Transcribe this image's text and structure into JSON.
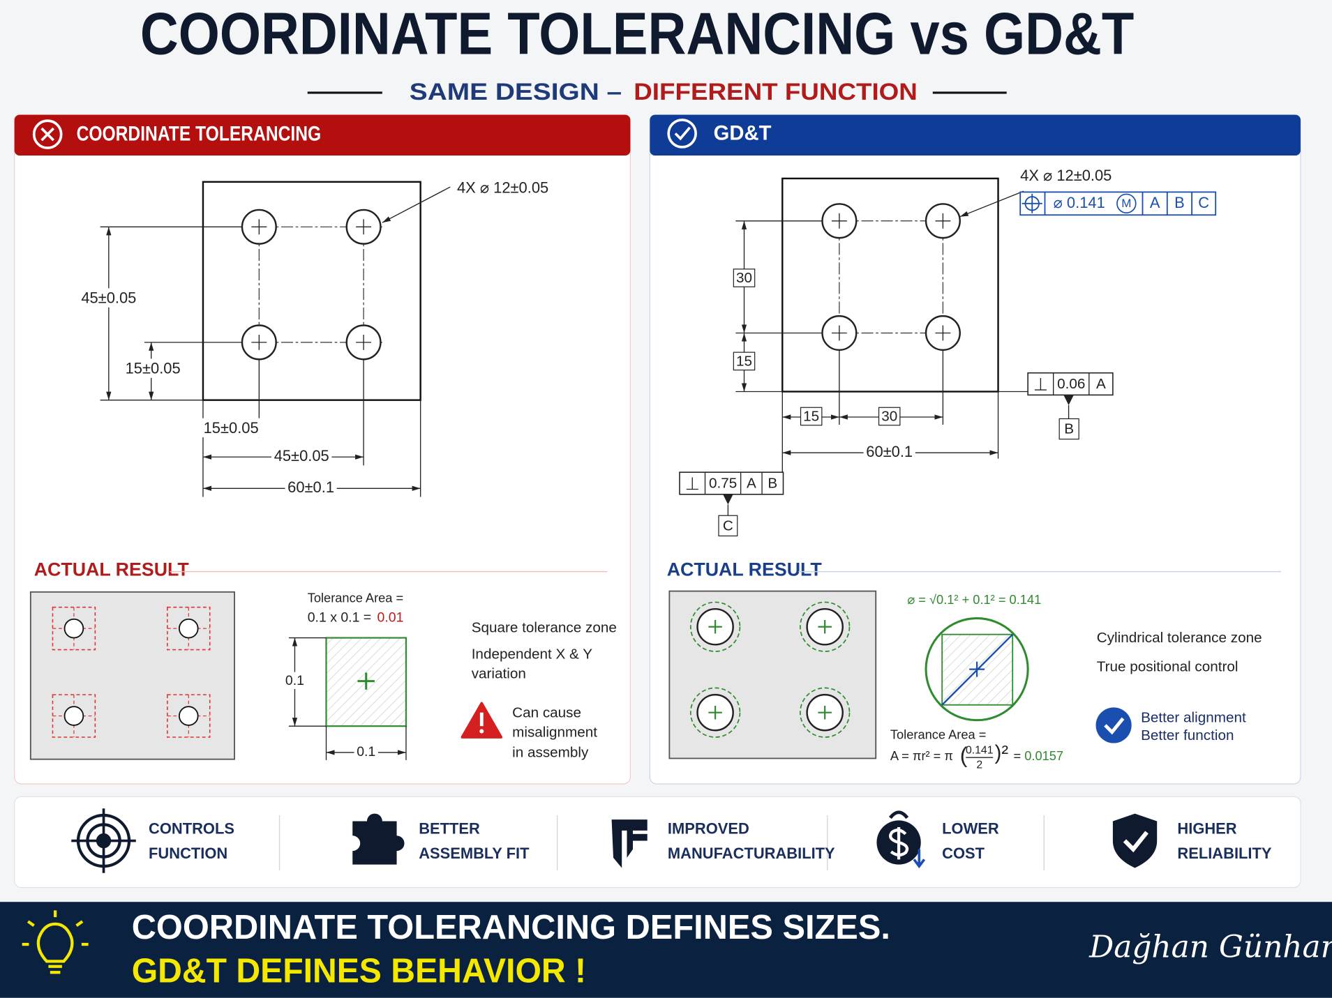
{
  "header": {
    "title": "COORDINATE TOLERANCING vs GD&T",
    "subtitle_left": "SAME DESIGN –",
    "subtitle_right": "DIFFERENT FUNCTION"
  },
  "left_panel": {
    "title": "COORDINATE TOLERANCING",
    "drawing": {
      "hole_callout": "4X ⌀ 12±0.05",
      "dim_vertical_outer": "45±0.05",
      "dim_vertical_inner": "15±0.05",
      "dim_horizontal_first": "15±0.05",
      "dim_horizontal_second": "45±0.05",
      "dim_horizontal_overall": "60±0.1"
    },
    "result": {
      "heading": "ACTUAL RESULT",
      "area_label": "Tolerance Area =",
      "area_formula": "0.1 x 0.1 =",
      "area_value": "0.01",
      "zone_height": "0.1",
      "zone_width": "0.1",
      "notes": [
        "Square tolerance zone",
        "Independent X & Y",
        "variation"
      ],
      "warning": [
        "Can cause",
        "misalignment",
        "in assembly"
      ]
    }
  },
  "right_panel": {
    "title": "GD&T",
    "drawing": {
      "hole_callout": "4X ⌀ 12±0.05",
      "position_frame": {
        "tolerance": "⌀ 0.141",
        "modifier": "M",
        "datums": [
          "A",
          "B",
          "C"
        ]
      },
      "dim_vertical_upper": "30",
      "dim_vertical_lower": "15",
      "dim_horizontal_first": "15",
      "dim_horizontal_second": "30",
      "dim_horizontal_overall": "60±0.1",
      "perpendicularity_frame_right": {
        "tolerance": "0.06",
        "datums": [
          "A"
        ]
      },
      "datum_right": "B",
      "perpendicularity_frame_left": {
        "tolerance": "0.75",
        "datums": [
          "A",
          "B"
        ]
      },
      "datum_left": "C"
    },
    "result": {
      "heading": "ACTUAL RESULT",
      "diameter_formula": "⌀ = √0.1² + 0.1² = 0.141",
      "area_label": "Tolerance Area =",
      "area_formula_start": "A = πr² = π",
      "area_open": "(",
      "area_numerator": "0.141",
      "area_denominator": "2",
      "area_close": ")²",
      "area_equals": "=",
      "area_value": "0.0157",
      "notes": [
        "Cylindrical tolerance zone",
        "True positional control"
      ],
      "benefits": [
        "Better alignment",
        "Better function"
      ]
    }
  },
  "benefits": [
    {
      "lines": [
        "CONTROLS",
        "FUNCTION"
      ]
    },
    {
      "lines": [
        "BETTER",
        "ASSEMBLY FIT"
      ]
    },
    {
      "lines": [
        "IMPROVED",
        "MANUFACTURABILITY"
      ]
    },
    {
      "lines": [
        "LOWER",
        "COST"
      ]
    },
    {
      "lines": [
        "HIGHER",
        "RELIABILITY"
      ]
    }
  ],
  "footer": {
    "line1": "COORDINATE TOLERANCING DEFINES SIZES.",
    "line2": "GD&T DEFINES BEHAVIOR !",
    "signature": "Dağhan Günhan"
  }
}
